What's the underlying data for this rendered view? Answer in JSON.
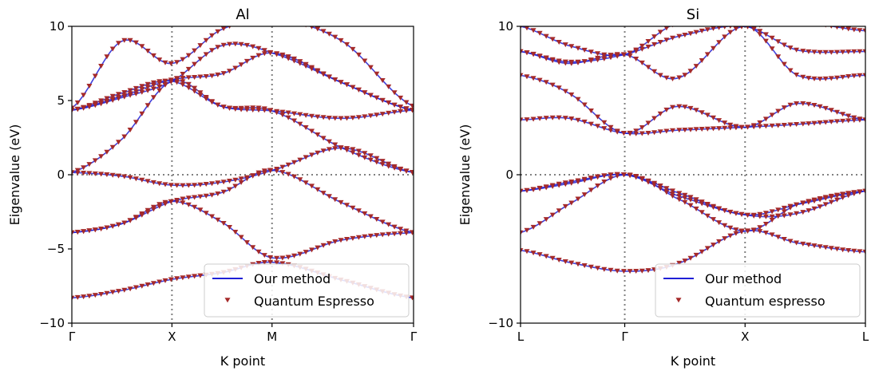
{
  "colors": {
    "method_line": "#1f1fd6",
    "qe_marker": "#a52a2a",
    "reference_line": "#808080",
    "frame": "#000000",
    "legend_border": "#cccccc"
  },
  "chart_data": [
    {
      "type": "line",
      "title": "Al",
      "xlabel": "K point",
      "ylabel": "Eigenvalue (eV)",
      "ylim": [
        -10,
        10
      ],
      "yticks": [
        -10,
        -5,
        0,
        5,
        10
      ],
      "ytick_labels": [
        "−10",
        "−5",
        "0",
        "5",
        "10"
      ],
      "kpoints": [
        {
          "label": "Γ",
          "pos": 0
        },
        {
          "label": "X",
          "pos": 1
        },
        {
          "label": "M",
          "pos": 2
        },
        {
          "label": "Γ",
          "pos": 3.414
        }
      ],
      "xlim": [
        0,
        3.414
      ],
      "reference_lines": {
        "y": [
          0
        ],
        "x": [
          1,
          2
        ]
      },
      "legend": {
        "placement": "bottom-right",
        "entries": [
          "Our method",
          "Quantum Espresso"
        ]
      },
      "series": [
        {
          "values": [
            [
              0,
              -8.3
            ],
            [
              0.5,
              -7.8
            ],
            [
              1,
              -7.05
            ],
            [
              1.5,
              -6.6
            ],
            [
              2,
              -5.9
            ],
            [
              2.7,
              -7.1
            ],
            [
              3.414,
              -8.3
            ]
          ]
        },
        {
          "values": [
            [
              0,
              -3.9
            ],
            [
              0.5,
              -3.3
            ],
            [
              1,
              -1.8
            ],
            [
              1.5,
              -3.2
            ],
            [
              2,
              -5.6
            ],
            [
              2.7,
              -4.4
            ],
            [
              3.414,
              -3.9
            ]
          ]
        },
        {
          "values": [
            [
              0,
              -3.9
            ],
            [
              0.5,
              -3.3
            ],
            [
              1,
              -1.8
            ],
            [
              1.5,
              -1.2
            ],
            [
              2,
              0.3
            ],
            [
              2.7,
              -1.9
            ],
            [
              3.414,
              -3.9
            ]
          ]
        },
        {
          "values": [
            [
              0,
              0.15
            ],
            [
              0.5,
              -0.1
            ],
            [
              1,
              -0.7
            ],
            [
              1.5,
              -0.5
            ],
            [
              2,
              0.3
            ],
            [
              2.7,
              1.8
            ],
            [
              3.414,
              0.15
            ]
          ]
        },
        {
          "values": [
            [
              0,
              0.15
            ],
            [
              0.5,
              2.4
            ],
            [
              1,
              6.3
            ],
            [
              1.5,
              4.6
            ],
            [
              2,
              4.3
            ],
            [
              2.7,
              1.8
            ],
            [
              3.414,
              0.15
            ]
          ]
        },
        {
          "values": [
            [
              0,
              4.35
            ],
            [
              0.5,
              5.5
            ],
            [
              1,
              6.3
            ],
            [
              1.5,
              4.6
            ],
            [
              2,
              4.3
            ],
            [
              2.7,
              3.8
            ],
            [
              3.414,
              4.35
            ]
          ]
        },
        {
          "values": [
            [
              0,
              4.35
            ],
            [
              0.5,
              5.2
            ],
            [
              1,
              6.3
            ],
            [
              1.5,
              8.7
            ],
            [
              2,
              8.2
            ],
            [
              2.7,
              6.2
            ],
            [
              3.414,
              4.35
            ]
          ]
        },
        {
          "values": [
            [
              0,
              4.35
            ],
            [
              0.5,
              5.3
            ],
            [
              1,
              6.4
            ],
            [
              1.5,
              6.8
            ],
            [
              2,
              8.2
            ],
            [
              2.7,
              6.2
            ],
            [
              3.414,
              4.35
            ]
          ]
        },
        {
          "values": [
            [
              0,
              4.5
            ],
            [
              0.5,
              9.0
            ],
            [
              1,
              7.5
            ],
            [
              1.5,
              9.8
            ],
            [
              2,
              10.5
            ],
            [
              2.7,
              9.0
            ],
            [
              3.414,
              4.6
            ]
          ]
        }
      ]
    },
    {
      "type": "line",
      "title": "Si",
      "xlabel": "K point",
      "ylabel": "Eigenvalue (eV)",
      "ylim": [
        -10,
        10
      ],
      "yticks": [
        -10,
        0,
        10
      ],
      "ytick_labels": [
        "−10",
        "0",
        "10"
      ],
      "kpoints": [
        {
          "label": "L",
          "pos": 0
        },
        {
          "label": "Γ",
          "pos": 0.866
        },
        {
          "label": "X",
          "pos": 1.866
        },
        {
          "label": "L",
          "pos": 2.866
        }
      ],
      "xlim": [
        0,
        2.866
      ],
      "reference_lines": {
        "y": [
          0
        ],
        "x": [
          0.866,
          1.866
        ]
      },
      "legend": {
        "placement": "bottom-right",
        "entries": [
          "Our method",
          "Quantum espresso"
        ]
      },
      "series": [
        {
          "values": [
            [
              0,
              -5.1
            ],
            [
              0.4,
              -5.9
            ],
            [
              0.866,
              -6.5
            ],
            [
              1.3,
              -6.0
            ],
            [
              1.866,
              -3.8
            ],
            [
              2.3,
              -4.6
            ],
            [
              2.866,
              -5.2
            ]
          ]
        },
        {
          "values": [
            [
              0,
              -3.9
            ],
            [
              0.4,
              -2.0
            ],
            [
              0.866,
              0.0
            ],
            [
              1.3,
              -1.6
            ],
            [
              1.866,
              -3.8
            ],
            [
              2.3,
              -2.0
            ],
            [
              2.866,
              -1.1
            ]
          ]
        },
        {
          "values": [
            [
              0,
              -1.1
            ],
            [
              0.4,
              -0.6
            ],
            [
              0.866,
              0.0
            ],
            [
              1.3,
              -1.4
            ],
            [
              1.866,
              -2.7
            ],
            [
              2.3,
              -2.6
            ],
            [
              2.866,
              -1.1
            ]
          ]
        },
        {
          "values": [
            [
              0,
              -1.1
            ],
            [
              0.4,
              -0.5
            ],
            [
              0.866,
              0.0
            ],
            [
              1.3,
              -1.2
            ],
            [
              1.866,
              -2.7
            ],
            [
              2.3,
              -2.0
            ],
            [
              2.866,
              -1.1
            ]
          ]
        },
        {
          "values": [
            [
              0,
              3.7
            ],
            [
              0.4,
              3.8
            ],
            [
              0.866,
              2.8
            ],
            [
              1.3,
              3.0
            ],
            [
              1.866,
              3.2
            ],
            [
              2.3,
              3.4
            ],
            [
              2.866,
              3.7
            ]
          ]
        },
        {
          "values": [
            [
              0,
              6.7
            ],
            [
              0.4,
              5.5
            ],
            [
              0.866,
              2.8
            ],
            [
              1.3,
              4.6
            ],
            [
              1.866,
              3.2
            ],
            [
              2.3,
              4.8
            ],
            [
              2.866,
              3.7
            ]
          ]
        },
        {
          "values": [
            [
              0,
              8.3
            ],
            [
              0.4,
              7.5
            ],
            [
              0.866,
              8.1
            ],
            [
              1.3,
              6.5
            ],
            [
              1.866,
              10.0
            ],
            [
              2.3,
              6.7
            ],
            [
              2.866,
              6.7
            ]
          ]
        },
        {
          "values": [
            [
              0,
              8.3
            ],
            [
              0.4,
              7.6
            ],
            [
              0.866,
              8.1
            ],
            [
              1.3,
              9.3
            ],
            [
              1.866,
              10.0
            ],
            [
              2.3,
              8.4
            ],
            [
              2.866,
              8.3
            ]
          ]
        },
        {
          "values": [
            [
              0,
              10.0
            ],
            [
              0.4,
              8.7
            ],
            [
              0.866,
              8.1
            ],
            [
              1.3,
              10.2
            ],
            [
              1.866,
              10.0
            ],
            [
              2.3,
              10.3
            ],
            [
              2.866,
              9.7
            ]
          ]
        }
      ]
    }
  ]
}
